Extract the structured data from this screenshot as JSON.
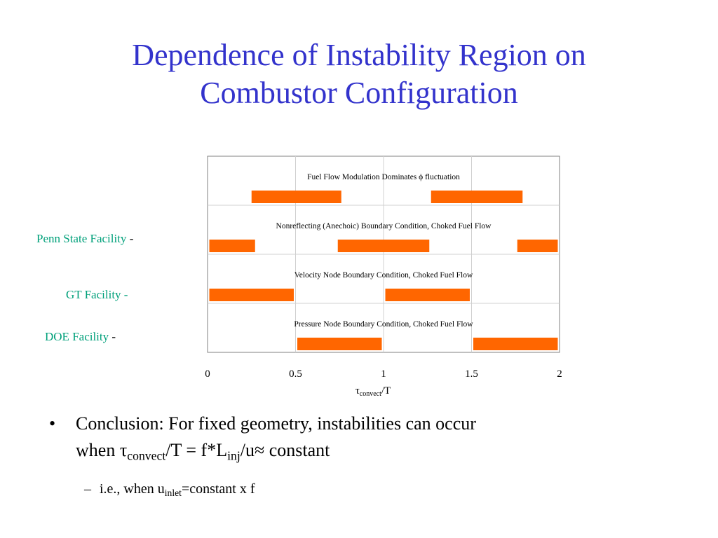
{
  "slide": {
    "title_lines": [
      "Dependence of Instability Region on",
      "Combustor Configuration"
    ],
    "title_color": "#3333cc"
  },
  "side_labels": [
    {
      "text": "Penn State Facility",
      "suffix": "-"
    },
    {
      "text": "GT Facility",
      "suffix": "-"
    },
    {
      "text": "DOE Facility",
      "suffix": "-"
    }
  ],
  "side_label_color": "#00a07a",
  "chart_data": {
    "type": "bar",
    "subtype": "horizontal-range",
    "xlabel": {
      "symbol": "τ",
      "sub": "convect",
      "rest": "/T"
    },
    "xlim": [
      0,
      2
    ],
    "xticks": [
      "0",
      "0.5",
      "1",
      "1.5",
      "2"
    ],
    "grid": true,
    "bar_color": "#ff6600",
    "rows": [
      {
        "label": "Fuel Flow Modulation Dominates ϕ fluctuation",
        "ranges": [
          [
            0.25,
            0.76
          ],
          [
            1.27,
            1.79
          ]
        ]
      },
      {
        "label": "Nonreflecting (Anechoic) Boundary Condition, Choked Fuel Flow",
        "ranges": [
          [
            0.01,
            0.27
          ],
          [
            0.74,
            1.26
          ],
          [
            1.76,
            1.99
          ]
        ]
      },
      {
        "label": "Velocity Node Boundary Condition, Choked Fuel Flow",
        "ranges": [
          [
            0.01,
            0.49
          ],
          [
            1.01,
            1.49
          ]
        ]
      },
      {
        "label": "Pressure Node Boundary Condition, Choked Fuel Flow",
        "ranges": [
          [
            0.51,
            0.99
          ],
          [
            1.51,
            1.99
          ]
        ]
      }
    ]
  },
  "bullets": {
    "main": {
      "dot": "•",
      "line1": "Conclusion: For fixed geometry, instabilities can occur",
      "w_pre": "when ",
      "tau": "τ",
      "tau_sub": "convect",
      "eq": "/T = f*L",
      "l_sub": "inj",
      "rest": "/u≈ constant"
    },
    "sub": {
      "dash": "–",
      "pre": "i.e.,  when u",
      "u_sub": "inlet",
      "rest": "=constant x f"
    }
  }
}
